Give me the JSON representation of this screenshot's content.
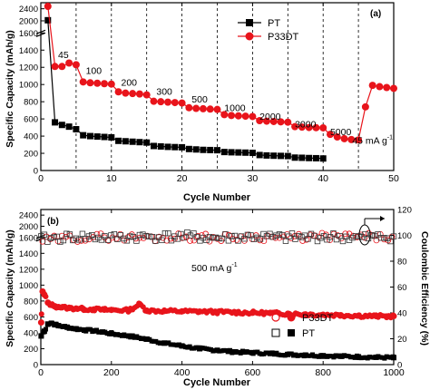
{
  "colors": {
    "pt": "#000000",
    "p33dt": "#e8141b",
    "axis": "#000000"
  },
  "chart_data": [
    {
      "panel": "(a)",
      "type": "line",
      "xlabel": "Cycle Number",
      "ylabel": "Specific Capacity (mAh/g)",
      "xlim": [
        0,
        50
      ],
      "x_ticks": [
        "0",
        "10",
        "20",
        "30",
        "40",
        "50"
      ],
      "y_ticks_lower": [
        "0",
        "200",
        "400",
        "600",
        "800",
        "1000",
        "1200",
        "1400",
        "1600"
      ],
      "y_ticks_upper": [
        "1600",
        "2000",
        "2400"
      ],
      "ylim_lower": [
        0,
        1600
      ],
      "ylim_upper": [
        1600,
        2600
      ],
      "grid": "dashed vertical lines at rate changes",
      "legend_position": "top-right",
      "vlines": [
        5,
        10,
        15,
        20,
        25,
        30,
        35,
        40,
        45
      ],
      "rate_labels": [
        {
          "text": "45",
          "x": 3.2,
          "y": 1310
        },
        {
          "text": "100",
          "x": 7.5,
          "y": 1125
        },
        {
          "text": "200",
          "x": 12.5,
          "y": 985
        },
        {
          "text": "300",
          "x": 17.5,
          "y": 880
        },
        {
          "text": "500",
          "x": 22.5,
          "y": 790
        },
        {
          "text": "1000",
          "x": 27.5,
          "y": 690
        },
        {
          "text": "2000",
          "x": 32.5,
          "y": 590
        },
        {
          "text": "3000",
          "x": 37.5,
          "y": 500
        },
        {
          "text": "5000",
          "x": 42.5,
          "y": 410
        },
        {
          "text": "45 mA g",
          "sup": "-1",
          "x": 47,
          "y": 310
        }
      ],
      "series": [
        {
          "name": "PT",
          "marker": "square",
          "x": [
            1,
            2,
            3,
            4,
            5,
            6,
            7,
            8,
            9,
            10,
            11,
            12,
            13,
            14,
            15,
            16,
            17,
            18,
            19,
            20,
            21,
            22,
            23,
            24,
            25,
            26,
            27,
            28,
            29,
            30,
            31,
            32,
            33,
            34,
            35,
            36,
            37,
            38,
            39,
            40
          ],
          "values": [
            2020,
            560,
            530,
            510,
            480,
            410,
            400,
            395,
            390,
            385,
            345,
            340,
            335,
            330,
            325,
            285,
            280,
            275,
            272,
            270,
            250,
            245,
            240,
            238,
            236,
            215,
            212,
            210,
            208,
            205,
            180,
            175,
            172,
            170,
            168,
            150,
            148,
            145,
            143,
            140
          ]
        },
        {
          "name": "P33DT",
          "marker": "circle",
          "x": [
            1,
            2,
            3,
            4,
            5,
            6,
            7,
            8,
            9,
            10,
            11,
            12,
            13,
            14,
            15,
            16,
            17,
            18,
            19,
            20,
            21,
            22,
            23,
            24,
            25,
            26,
            27,
            28,
            29,
            30,
            31,
            32,
            33,
            34,
            35,
            36,
            37,
            38,
            39,
            40,
            41,
            42,
            43,
            44,
            45,
            46,
            47,
            48,
            49,
            50
          ],
          "values": [
            2480,
            1210,
            1210,
            1250,
            1230,
            1030,
            1020,
            1015,
            1010,
            1005,
            915,
            900,
            895,
            890,
            880,
            805,
            800,
            795,
            790,
            785,
            730,
            722,
            718,
            714,
            710,
            650,
            640,
            636,
            632,
            628,
            580,
            574,
            570,
            566,
            562,
            510,
            505,
            500,
            498,
            496,
            420,
            390,
            370,
            360,
            355,
            740,
            990,
            975,
            965,
            955
          ]
        }
      ]
    },
    {
      "panel": "(b)",
      "type": "scatter",
      "xlabel": "Cycle Number",
      "ylabel": "Specific Capacity (mAh/g)",
      "y2label": "Coulombic Efficiency (%)",
      "xlim": [
        0,
        1000
      ],
      "x_ticks": [
        "0",
        "200",
        "400",
        "600",
        "800",
        "1000"
      ],
      "y_ticks_lower": [
        "0",
        "200",
        "400",
        "600",
        "800",
        "1000",
        "1200",
        "1400",
        "1600"
      ],
      "y_ticks_upper": [
        "1600",
        "2000",
        "2400"
      ],
      "y2_ticks": [
        "0",
        "20",
        "40",
        "60",
        "80",
        "100",
        "120"
      ],
      "ylim_lower": [
        0,
        1600
      ],
      "ylim_upper": [
        1600,
        2600
      ],
      "y2lim": [
        0,
        120
      ],
      "annotation": {
        "text": "500 mA g",
        "sup": "-1"
      },
      "legend_position": "bottom-right",
      "legend": [
        {
          "name": "P33DT",
          "markers": [
            "open-circle",
            "filled-circle"
          ]
        },
        {
          "name": "PT",
          "markers": [
            "open-square",
            "filled-square"
          ]
        }
      ],
      "series": [
        {
          "name": "P33DT capacity",
          "axis": "left",
          "x": [
            1,
            5,
            10,
            20,
            30,
            40,
            50,
            60,
            80,
            100,
            120,
            150,
            180,
            200,
            250,
            280,
            300,
            350,
            400,
            450,
            500,
            550,
            600,
            650,
            700,
            750,
            800,
            850,
            900,
            950,
            980,
            1000
          ],
          "values": [
            530,
            920,
            880,
            780,
            750,
            735,
            725,
            720,
            712,
            706,
            700,
            695,
            690,
            688,
            682,
            760,
            680,
            675,
            670,
            668,
            662,
            658,
            652,
            648,
            640,
            632,
            628,
            622,
            615,
            610,
            606,
            610
          ]
        },
        {
          "name": "PT capacity",
          "axis": "left",
          "x": [
            1,
            10,
            20,
            30,
            40,
            50,
            75,
            100,
            125,
            150,
            175,
            200,
            250,
            300,
            350,
            400,
            450,
            500,
            550,
            600,
            650,
            700,
            750,
            800,
            850,
            900,
            950,
            1000
          ],
          "values": [
            360,
            420,
            510,
            520,
            505,
            490,
            470,
            450,
            435,
            425,
            410,
            390,
            360,
            320,
            270,
            235,
            200,
            180,
            160,
            150,
            140,
            128,
            120,
            112,
            105,
            98,
            92,
            88
          ]
        },
        {
          "name": "P33DT coulombic efficiency",
          "axis": "right",
          "x": [
            1,
            100,
            200,
            300,
            400,
            500,
            600,
            700,
            800,
            900,
            1000
          ],
          "values": [
            96,
            98,
            99,
            98,
            99,
            98,
            99,
            98,
            99,
            99,
            98
          ]
        },
        {
          "name": "PT coulombic efficiency",
          "axis": "right",
          "x": [
            1,
            100,
            200,
            300,
            400,
            500,
            600,
            700,
            800,
            900,
            1000
          ],
          "values": [
            97,
            99,
            98,
            99,
            99,
            98,
            99,
            98,
            99,
            98,
            99
          ]
        }
      ]
    }
  ]
}
